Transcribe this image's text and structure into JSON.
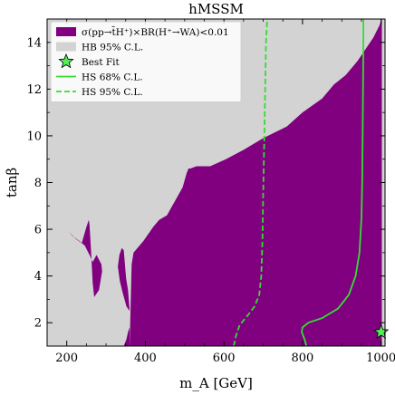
{
  "chart_data": {
    "type": "area",
    "title": "hMSSM",
    "xlabel": "m_A [GeV]",
    "ylabel": "tanβ",
    "xlim": [
      150,
      1010
    ],
    "ylim": [
      1,
      15
    ],
    "xticks": [
      200,
      400,
      600,
      800,
      1000
    ],
    "yticks": [
      2,
      4,
      6,
      8,
      10,
      12,
      14
    ],
    "grid": false,
    "legend_position": "top-left",
    "background_color": "#d3d3d3",
    "colors": {
      "purple": "#800080",
      "gray": "#d3d3d3",
      "green": "#33dd33",
      "star": "#55ee55"
    },
    "legend": [
      {
        "label": "σ(pp→t̄H⁺)×BR(H⁺→WA)<0.01",
        "style": "purple-fill"
      },
      {
        "label": "HB 95% C.L.",
        "style": "gray-fill"
      },
      {
        "label": "Best Fit",
        "style": "star"
      },
      {
        "label": "HS 68% C.L.",
        "style": "solid-line"
      },
      {
        "label": "HS 95% C.L.",
        "style": "dashed-line"
      }
    ],
    "series": [
      {
        "name": "σ(pp→t̄H⁺)×BR(H⁺→WA)<0.01",
        "kind": "region",
        "x": [
          360,
          365,
          370,
          395,
          420,
          435,
          455,
          475,
          495,
          505,
          510,
          515,
          530,
          565,
          605,
          650,
          700,
          760,
          800,
          850,
          880,
          910,
          940,
          960,
          980,
          995,
          1002,
          1002,
          360
        ],
        "y": [
          1,
          4.5,
          5.0,
          5.5,
          6.1,
          6.4,
          6.6,
          7.2,
          7.8,
          8.4,
          8.6,
          8.6,
          8.7,
          8.7,
          9.0,
          9.4,
          9.9,
          10.4,
          11.0,
          11.6,
          12.2,
          12.6,
          13.2,
          13.7,
          14.2,
          14.7,
          15,
          1,
          1
        ]
      },
      {
        "name": "island-1",
        "kind": "region",
        "x": [
          205,
          222,
          238,
          250,
          256,
          258,
          262,
          266,
          270,
          282,
          290,
          288,
          276,
          266,
          258,
          246,
          232,
          215,
          205
        ],
        "y": [
          5.9,
          5.6,
          5.4,
          6.1,
          6.4,
          6.2,
          5.0,
          3.7,
          3.1,
          3.4,
          4.2,
          4.5,
          4.9,
          4.6,
          4.9,
          5.3,
          5.5,
          5.7,
          5.9
        ]
      },
      {
        "name": "island-2",
        "kind": "region",
        "x": [
          330,
          334,
          340,
          345,
          348,
          351,
          356,
          360,
          352,
          342,
          335,
          330
        ],
        "y": [
          4.4,
          4.9,
          5.2,
          5.1,
          4.5,
          3.9,
          3.4,
          2.5,
          2.7,
          3.3,
          3.8,
          4.4
        ]
      },
      {
        "name": "island-3",
        "kind": "region",
        "x": [
          345,
          352,
          356,
          360,
          360,
          345
        ],
        "y": [
          1,
          1.3,
          1.6,
          1.8,
          1,
          1
        ]
      },
      {
        "name": "HS 68% C.L.",
        "kind": "line",
        "x": [
          810,
          805,
          798,
          800,
          815,
          850,
          890,
          918,
          935,
          945,
          950,
          952,
          953,
          954,
          955,
          955
        ],
        "y": [
          1,
          1.3,
          1.6,
          1.8,
          2.0,
          2.2,
          2.6,
          3.2,
          4.0,
          5.0,
          6.5,
          8.0,
          10.0,
          12.0,
          14.0,
          15
        ]
      },
      {
        "name": "HS 95% C.L.",
        "kind": "dashed-line",
        "x": [
          625,
          630,
          640,
          660,
          678,
          690,
          695,
          698,
          700,
          703,
          705,
          707,
          710
        ],
        "y": [
          1,
          1.4,
          1.9,
          2.3,
          2.7,
          3.2,
          4.0,
          5.5,
          7.5,
          10.0,
          12.0,
          14.0,
          15
        ]
      },
      {
        "name": "Best Fit",
        "kind": "point",
        "x": [
          1000
        ],
        "y": [
          1.6
        ]
      }
    ]
  }
}
